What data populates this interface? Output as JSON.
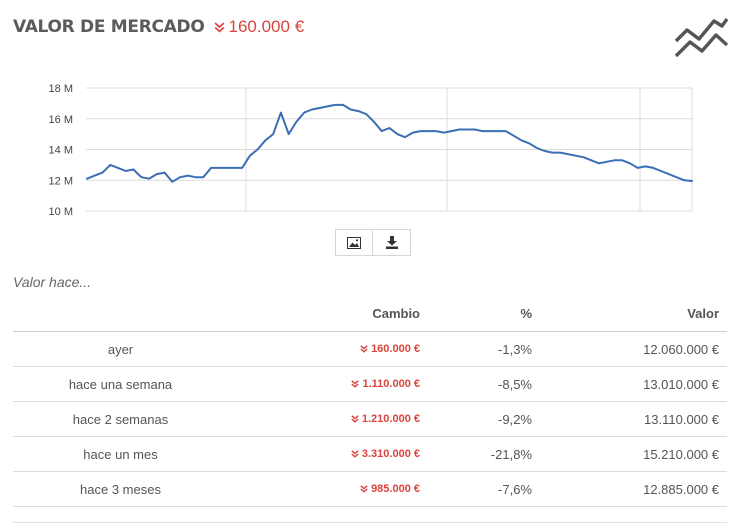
{
  "header": {
    "title": "VALOR DE MERCADO",
    "change": "160.000 €"
  },
  "chart_data": {
    "type": "line",
    "y_ticks": [
      "18 M",
      "16 M",
      "14 M",
      "12 M",
      "10 M"
    ],
    "ylim": [
      10,
      18
    ],
    "grid": true,
    "series": [
      {
        "color": "#3b6eb5",
        "values": [
          12.1,
          12.3,
          12.5,
          13.0,
          12.8,
          12.6,
          12.7,
          12.2,
          12.1,
          12.4,
          12.5,
          11.9,
          12.2,
          12.3,
          12.2,
          12.2,
          12.8,
          12.8,
          12.8,
          12.8,
          12.8,
          13.6,
          14.0,
          14.6,
          15.0,
          16.4,
          15.0,
          15.8,
          16.4,
          16.6,
          16.7,
          16.8,
          16.9,
          16.9,
          16.6,
          16.5,
          16.3,
          15.8,
          15.2,
          15.4,
          15.0,
          14.8,
          15.1,
          15.2,
          15.2,
          15.2,
          15.1,
          15.2,
          15.3,
          15.3,
          15.3,
          15.2,
          15.2,
          15.2,
          15.2,
          14.9,
          14.6,
          14.4,
          14.1,
          13.9,
          13.8,
          13.8,
          13.7,
          13.6,
          13.5,
          13.3,
          13.1,
          13.2,
          13.3,
          13.3,
          13.1,
          12.8,
          12.9,
          12.8,
          12.6,
          12.4,
          12.2,
          12.0,
          11.95
        ]
      }
    ]
  },
  "export": {
    "image_icon": "image-icon",
    "download_icon": "download-icon"
  },
  "history": {
    "subtitle": "Valor hace...",
    "columns": [
      "",
      "Cambio",
      "%",
      "Valor"
    ],
    "rows": [
      {
        "label": "ayer",
        "change": "160.000 €",
        "pct": "-1,3%",
        "value": "12.060.000 €"
      },
      {
        "label": "hace una semana",
        "change": "1.110.000 €",
        "pct": "-8,5%",
        "value": "13.010.000 €"
      },
      {
        "label": "hace 2 semanas",
        "change": "1.210.000 €",
        "pct": "-9,2%",
        "value": "13.110.000 €"
      },
      {
        "label": "hace un mes",
        "change": "3.310.000 €",
        "pct": "-21,8%",
        "value": "15.210.000 €"
      },
      {
        "label": "hace 3 meses",
        "change": "985.000 €",
        "pct": "-7,6%",
        "value": "12.885.000 €"
      }
    ]
  },
  "colors": {
    "negative": "#d9443e",
    "line": "#3b6eb5"
  }
}
